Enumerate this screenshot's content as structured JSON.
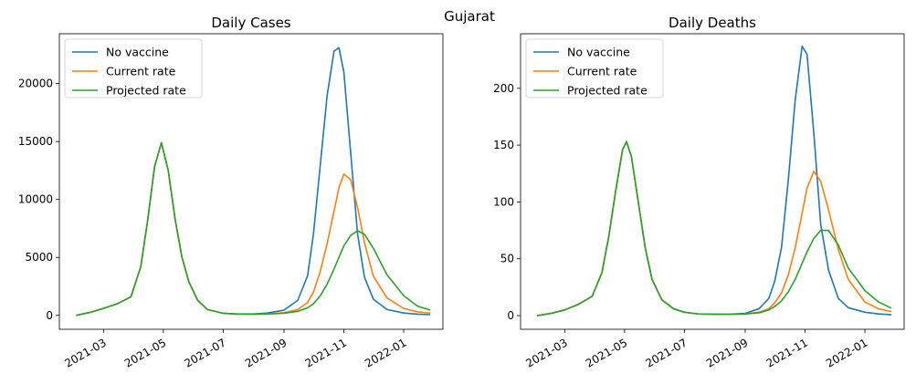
{
  "figure": {
    "suptitle": "Gujarat"
  },
  "chart_data": [
    {
      "type": "line",
      "title": "Daily Cases",
      "xlabel": "",
      "ylabel": "",
      "x_axis_kind": "date",
      "x_ticks": [
        "2021-03-01",
        "2021-05-01",
        "2021-07-01",
        "2021-09-01",
        "2021-11-01",
        "2022-01-01"
      ],
      "x_tick_labels": [
        "2021-03",
        "2021-05",
        "2021-07",
        "2021-09",
        "2021-11",
        "2022-01"
      ],
      "y_ticks": [
        0,
        5000,
        10000,
        15000,
        20000
      ],
      "y_tick_labels": [
        "0",
        "5000",
        "10000",
        "15000",
        "20000"
      ],
      "xlim": [
        "2021-01-15",
        "2022-02-10"
      ],
      "ylim": [
        -1200,
        24300
      ],
      "grid": false,
      "legend": "top-left",
      "x": [
        "2021-02-01",
        "2021-02-15",
        "2021-03-01",
        "2021-03-15",
        "2021-03-29",
        "2021-04-08",
        "2021-04-15",
        "2021-04-22",
        "2021-04-29",
        "2021-05-06",
        "2021-05-13",
        "2021-05-20",
        "2021-05-27",
        "2021-06-05",
        "2021-06-15",
        "2021-07-01",
        "2021-07-15",
        "2021-08-01",
        "2021-08-15",
        "2021-09-01",
        "2021-09-15",
        "2021-09-25",
        "2021-10-01",
        "2021-10-08",
        "2021-10-15",
        "2021-10-22",
        "2021-10-27",
        "2021-11-01",
        "2021-11-08",
        "2021-11-15",
        "2021-11-22",
        "2021-12-01",
        "2021-12-15",
        "2022-01-01",
        "2022-01-15",
        "2022-01-28"
      ],
      "series": [
        {
          "name": "No vaccine",
          "color": "#1f77b4",
          "values": [
            0,
            250,
            600,
            1000,
            1600,
            4200,
            8200,
            12800,
            14900,
            12500,
            8300,
            5000,
            2900,
            1300,
            500,
            180,
            120,
            120,
            200,
            450,
            1300,
            3400,
            7000,
            13000,
            19000,
            22800,
            23100,
            21000,
            14000,
            7000,
            3300,
            1400,
            500,
            200,
            100,
            60
          ]
        },
        {
          "name": "Current rate",
          "color": "#ff7f0e",
          "values": [
            0,
            250,
            600,
            1000,
            1600,
            4200,
            8200,
            12800,
            14900,
            12500,
            8300,
            5000,
            2900,
            1300,
            500,
            180,
            110,
            100,
            130,
            220,
            500,
            1100,
            2000,
            3800,
            6200,
            9000,
            11000,
            12200,
            11700,
            9300,
            6300,
            3400,
            1500,
            600,
            300,
            200
          ]
        },
        {
          "name": "Projected rate",
          "color": "#2ca02c",
          "values": [
            0,
            250,
            600,
            1000,
            1600,
            4200,
            8200,
            12800,
            14900,
            12500,
            8300,
            5000,
            2900,
            1300,
            500,
            180,
            110,
            100,
            120,
            180,
            350,
            650,
            1000,
            1700,
            2700,
            4000,
            5000,
            6000,
            6900,
            7300,
            7000,
            5800,
            3500,
            1700,
            800,
            450
          ]
        }
      ]
    },
    {
      "type": "line",
      "title": "Daily Deaths",
      "xlabel": "",
      "ylabel": "",
      "x_axis_kind": "date",
      "x_ticks": [
        "2021-03-01",
        "2021-05-01",
        "2021-07-01",
        "2021-09-01",
        "2021-11-01",
        "2022-01-01"
      ],
      "x_tick_labels": [
        "2021-03",
        "2021-05",
        "2021-07",
        "2021-09",
        "2021-11",
        "2022-01"
      ],
      "y_ticks": [
        0,
        50,
        100,
        150,
        200
      ],
      "y_tick_labels": [
        "0",
        "50",
        "100",
        "150",
        "200"
      ],
      "xlim": [
        "2021-01-15",
        "2022-02-10"
      ],
      "ylim": [
        -12,
        248
      ],
      "grid": false,
      "legend": "top-left",
      "x": [
        "2021-02-01",
        "2021-02-15",
        "2021-03-01",
        "2021-03-15",
        "2021-03-29",
        "2021-04-08",
        "2021-04-15",
        "2021-04-22",
        "2021-04-29",
        "2021-05-03",
        "2021-05-08",
        "2021-05-15",
        "2021-05-22",
        "2021-05-29",
        "2021-06-08",
        "2021-06-20",
        "2021-07-01",
        "2021-07-15",
        "2021-08-01",
        "2021-08-15",
        "2021-09-01",
        "2021-09-15",
        "2021-09-25",
        "2021-10-01",
        "2021-10-08",
        "2021-10-15",
        "2021-10-22",
        "2021-10-29",
        "2021-11-03",
        "2021-11-10",
        "2021-11-17",
        "2021-11-25",
        "2021-12-05",
        "2021-12-15",
        "2022-01-01",
        "2022-01-15",
        "2022-01-28"
      ],
      "series": [
        {
          "name": "No vaccine",
          "color": "#1f77b4",
          "values": [
            0,
            2,
            5,
            10,
            17,
            38,
            70,
            110,
            146,
            153,
            140,
            100,
            60,
            32,
            14,
            6,
            3,
            1.5,
            1.2,
            1.2,
            2,
            6,
            15,
            30,
            60,
            120,
            190,
            237,
            230,
            160,
            80,
            40,
            15,
            7,
            3,
            1.5,
            0.8
          ]
        },
        {
          "name": "Current rate",
          "color": "#ff7f0e",
          "values": [
            0,
            2,
            5,
            10,
            17,
            38,
            70,
            110,
            146,
            153,
            140,
            100,
            60,
            32,
            14,
            6,
            3,
            1.5,
            1.2,
            1.2,
            1.5,
            3,
            6,
            11,
            20,
            36,
            60,
            90,
            112,
            127,
            118,
            93,
            58,
            32,
            12,
            6,
            3.5
          ]
        },
        {
          "name": "Projected rate",
          "color": "#2ca02c",
          "values": [
            0,
            2,
            5,
            10,
            17,
            38,
            70,
            110,
            146,
            153,
            140,
            100,
            60,
            32,
            14,
            6,
            3,
            1.5,
            1.2,
            1.2,
            1.5,
            2.5,
            5,
            8,
            13,
            21,
            32,
            46,
            56,
            68,
            75,
            75,
            62,
            42,
            22,
            12,
            6.5
          ]
        }
      ]
    }
  ]
}
